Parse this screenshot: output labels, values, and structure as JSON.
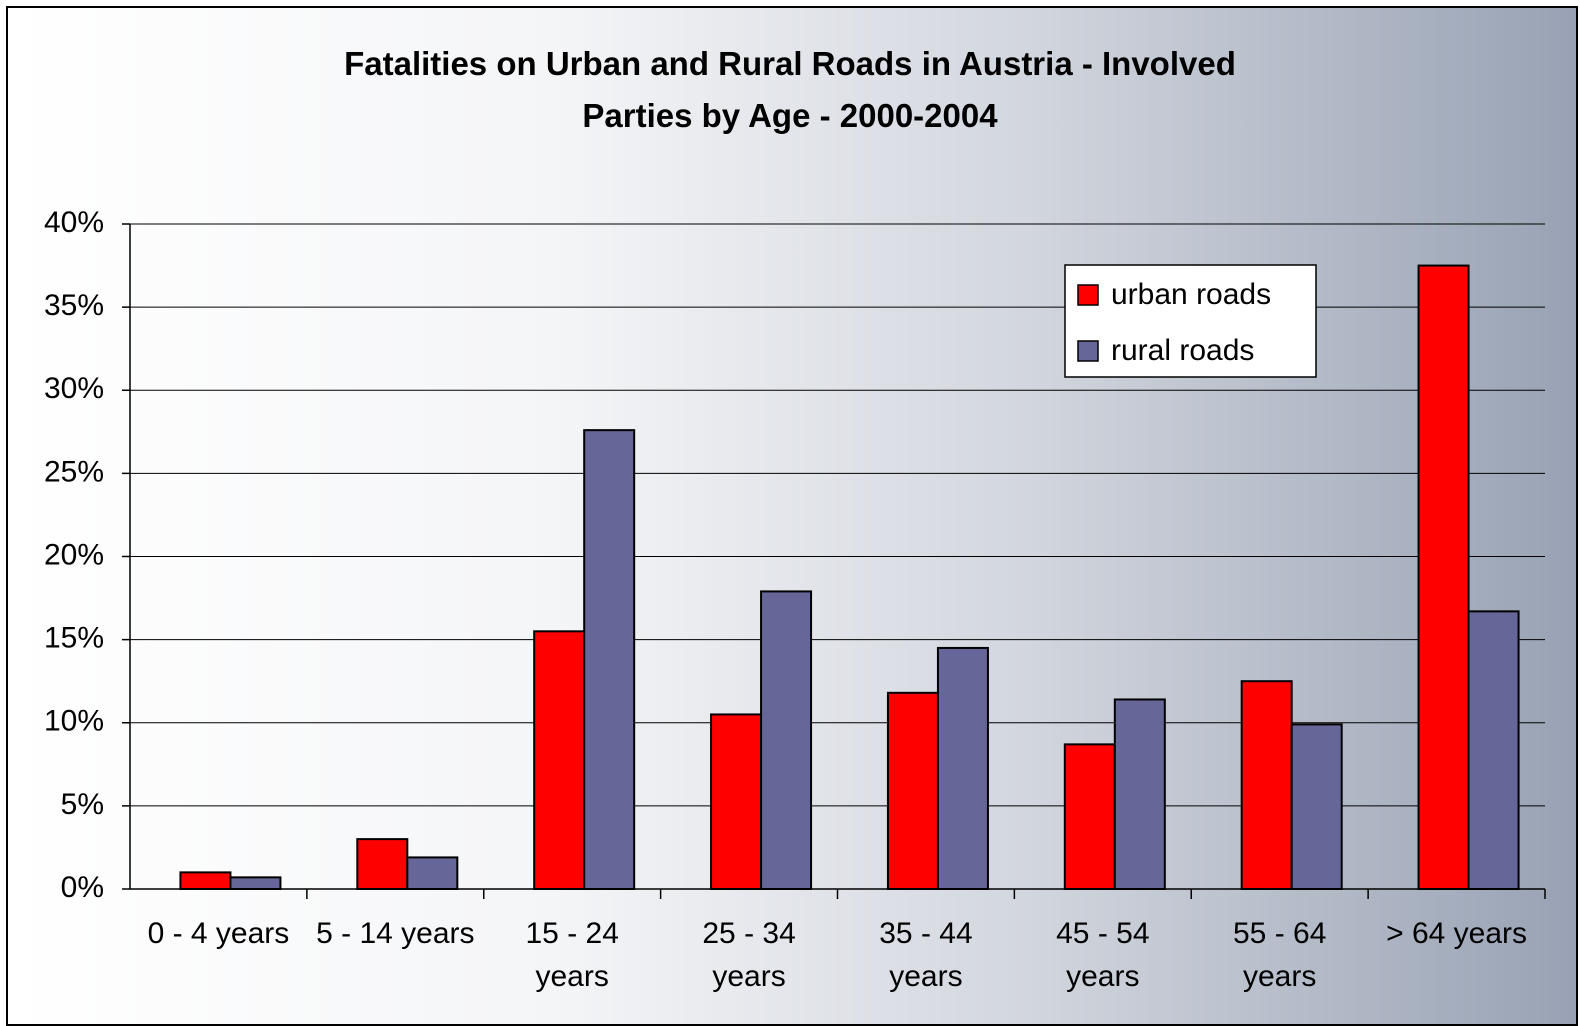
{
  "chart_data": {
    "type": "bar",
    "title": "Fatalities on Urban and Rural Roads in Austria - Involved Parties by Age - 2000-2004",
    "categories": [
      "0 - 4 years",
      "5 - 14 years",
      "15 - 24 years",
      "25 - 34 years",
      "35 - 44 years",
      "45 - 54 years",
      "55 - 64 years",
      "> 64 years"
    ],
    "series": [
      {
        "name": "urban roads",
        "color": "#ff0000",
        "values": [
          1.0,
          3.0,
          15.5,
          10.5,
          11.8,
          8.7,
          12.5,
          37.5
        ]
      },
      {
        "name": "rural roads",
        "color": "#666699",
        "values": [
          0.7,
          1.9,
          27.6,
          17.9,
          14.5,
          11.4,
          9.9,
          16.7
        ]
      }
    ],
    "ylim": [
      0,
      40
    ],
    "yticks": [
      {
        "value": 0,
        "label": "0%"
      },
      {
        "value": 5,
        "label": "5%"
      },
      {
        "value": 10,
        "label": "10%"
      },
      {
        "value": 15,
        "label": "15%"
      },
      {
        "value": 20,
        "label": "20%"
      },
      {
        "value": 25,
        "label": "25%"
      },
      {
        "value": 30,
        "label": "30%"
      },
      {
        "value": 35,
        "label": "35%"
      },
      {
        "value": 40,
        "label": "40%"
      }
    ],
    "grid": true,
    "legend": "upper-right"
  }
}
